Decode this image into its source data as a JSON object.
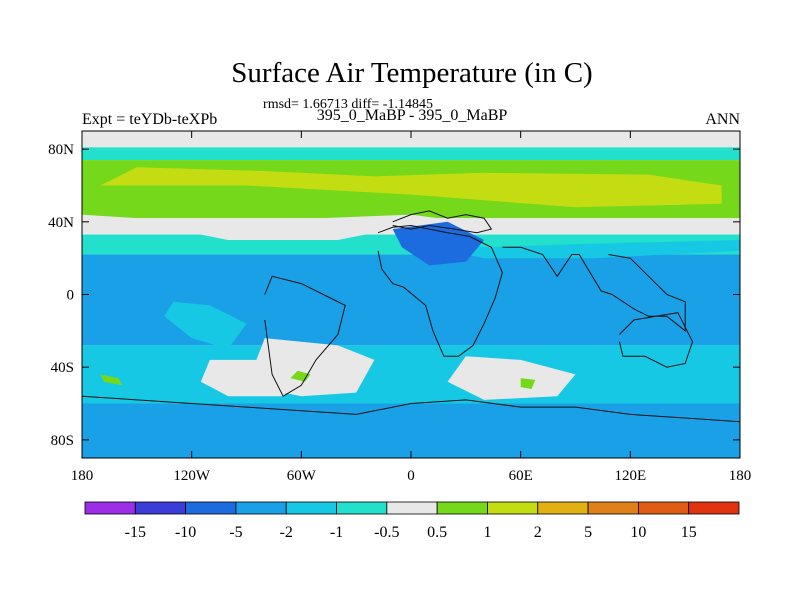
{
  "chart_data": {
    "type": "heatmap",
    "title": "Surface Air Temperature (in C)",
    "subtitle_stats": "rmsd= 1.66713 diff= -1.14845",
    "subtitle_experiment": "395_0_MaBP - 395_0_MaBP",
    "left_label": "Expt = teYDb-teXPb",
    "right_label": "ANN",
    "x_range": [
      -180,
      180
    ],
    "y_range": [
      -90,
      90
    ],
    "x_ticks": [
      {
        "value": -180,
        "label": "180"
      },
      {
        "value": -120,
        "label": "120W"
      },
      {
        "value": -60,
        "label": "60W"
      },
      {
        "value": 0,
        "label": "0"
      },
      {
        "value": 60,
        "label": "60E"
      },
      {
        "value": 120,
        "label": "120E"
      },
      {
        "value": 180,
        "label": "180"
      }
    ],
    "y_ticks": [
      {
        "value": 80,
        "label": "80N"
      },
      {
        "value": 40,
        "label": "40N"
      },
      {
        "value": 0,
        "label": "0"
      },
      {
        "value": -40,
        "label": "40S"
      },
      {
        "value": -80,
        "label": "80S"
      }
    ],
    "colorbar": {
      "colors": [
        "#9b2ee6",
        "#3c3cd8",
        "#1c6ce0",
        "#1aa0e6",
        "#16c8e4",
        "#22e0cc",
        "#e8e8e8",
        "#76d81a",
        "#c4dc12",
        "#e0b014",
        "#e0801a",
        "#e05c14",
        "#e03410"
      ],
      "labels": [
        "-15",
        "-10",
        "-5",
        "-2",
        "-1",
        "-0.5",
        "0.5",
        "1",
        "2",
        "5",
        "10",
        "15"
      ]
    },
    "bands": [
      {
        "lat_top": 90,
        "lat_bottom": 81,
        "color": "#e8e8e8"
      },
      {
        "lat_top": 81,
        "lat_bottom": 74,
        "color": "#22e0cc"
      },
      {
        "lat_top": 74,
        "lat_bottom": 42,
        "color": "#76d81a"
      },
      {
        "lat_top": 42,
        "lat_bottom": 33,
        "color": "#e8e8e8"
      },
      {
        "lat_top": 33,
        "lat_bottom": 22,
        "color": "#22e0cc"
      },
      {
        "lat_top": 22,
        "lat_bottom": -28,
        "color": "#1aa0e6"
      },
      {
        "lat_top": -28,
        "lat_bottom": -60,
        "color": "#16c8e4"
      },
      {
        "lat_top": -60,
        "lat_bottom": -90,
        "color": "#1aa0e6"
      }
    ],
    "patches": [
      {
        "lon": [
          -150,
          -80,
          -20,
          40,
          130,
          170,
          170,
          90,
          0,
          -90,
          -170
        ],
        "lat": [
          70,
          68,
          65,
          67,
          66,
          60,
          50,
          48,
          55,
          60,
          60
        ],
        "color": "#c4dc12"
      },
      {
        "lon": [
          -180,
          -140,
          -100,
          -40,
          0,
          15,
          0,
          -50,
          -120,
          -180
        ],
        "lat": [
          40,
          38,
          30,
          30,
          38,
          42,
          44,
          42,
          40,
          44
        ],
        "color": "#e8e8e8"
      },
      {
        "lon": [
          0,
          40,
          100,
          180,
          180,
          100,
          40,
          10
        ],
        "lat": [
          34,
          26,
          28,
          30,
          24,
          20,
          20,
          26
        ],
        "color": "#16c8e4"
      },
      {
        "lon": [
          -10,
          20,
          40,
          30,
          10,
          -5
        ],
        "lat": [
          36,
          40,
          30,
          18,
          16,
          26
        ],
        "color": "#1c6ce0"
      },
      {
        "lon": [
          -130,
          -110,
          -90,
          -100,
          -120,
          -135
        ],
        "lat": [
          -4,
          -6,
          -16,
          -30,
          -24,
          -12
        ],
        "color": "#16c8e4"
      },
      {
        "lon": [
          -80,
          -40,
          -20,
          -30,
          -60,
          -90
        ],
        "lat": [
          -24,
          -28,
          -36,
          -54,
          -56,
          -50
        ],
        "color": "#e8e8e8"
      },
      {
        "lon": [
          -110,
          -80,
          -60,
          -70,
          -100,
          -115
        ],
        "lat": [
          -36,
          -36,
          -46,
          -56,
          -56,
          -48
        ],
        "color": "#e8e8e8"
      },
      {
        "lon": [
          30,
          60,
          90,
          80,
          40,
          20
        ],
        "lat": [
          -34,
          -36,
          -44,
          -56,
          -58,
          -48
        ],
        "color": "#e8e8e8"
      },
      {
        "lon": [
          -170,
          -160,
          -158,
          -168
        ],
        "lat": [
          -44,
          -46,
          -50,
          -48
        ],
        "color": "#76d81a"
      },
      {
        "lon": [
          -62,
          -55,
          -58,
          -66
        ],
        "lat": [
          -42,
          -44,
          -48,
          -46
        ],
        "color": "#76d81a"
      },
      {
        "lon": [
          60,
          68,
          66,
          60
        ],
        "lat": [
          -46,
          -47,
          -52,
          -51
        ],
        "color": "#76d81a"
      },
      {
        "lon": [
          -180,
          -120,
          -40,
          0,
          40,
          120,
          180,
          180,
          -180
        ],
        "lat": [
          -62,
          -64,
          -66,
          -62,
          -64,
          -68,
          -66,
          -90,
          -90
        ],
        "color": "#1aa0e6"
      }
    ],
    "coastlines": [
      {
        "name": "africa",
        "lon": [
          -18,
          -10,
          0,
          10,
          20,
          32,
          44,
          50,
          46,
          40,
          34,
          26,
          18,
          12,
          8,
          -4,
          -10,
          -16,
          -18
        ],
        "lat": [
          34,
          37,
          38,
          36,
          34,
          32,
          26,
          12,
          -2,
          -16,
          -28,
          -34,
          -34,
          -20,
          -6,
          4,
          6,
          14,
          24
        ]
      },
      {
        "name": "south-america",
        "lon": [
          -80,
          -76,
          -60,
          -48,
          -36,
          -40,
          -52,
          -60,
          -70,
          -76,
          -80
        ],
        "lat": [
          0,
          10,
          6,
          0,
          -6,
          -22,
          -36,
          -50,
          -56,
          -44,
          -14
        ]
      },
      {
        "name": "india-asia",
        "lon": [
          50,
          60,
          72,
          80,
          88,
          92,
          104,
          110,
          122,
          130,
          140,
          150,
          150,
          140,
          130,
          120,
          108
        ],
        "lat": [
          26,
          26,
          22,
          10,
          22,
          22,
          2,
          0,
          -8,
          -12,
          -12,
          -20,
          -4,
          0,
          10,
          20,
          22
        ]
      },
      {
        "name": "australia",
        "lon": [
          114,
          122,
          134,
          146,
          154,
          150,
          140,
          128,
          116,
          114
        ],
        "lat": [
          -22,
          -14,
          -12,
          -10,
          -26,
          -38,
          -40,
          -34,
          -34,
          -26
        ]
      },
      {
        "name": "antarctica",
        "lon": [
          -180,
          -150,
          -120,
          -90,
          -60,
          -30,
          0,
          30,
          60,
          90,
          120,
          150,
          180
        ],
        "lat": [
          -56,
          -58,
          -60,
          -62,
          -64,
          -66,
          -60,
          -58,
          -62,
          -62,
          -66,
          -68,
          -70
        ]
      },
      {
        "name": "europe",
        "lon": [
          -10,
          0,
          10,
          20,
          30,
          40,
          44,
          36,
          24,
          10,
          0,
          -10
        ],
        "lat": [
          40,
          44,
          46,
          42,
          44,
          42,
          36,
          34,
          36,
          38,
          36,
          38
        ]
      }
    ]
  }
}
